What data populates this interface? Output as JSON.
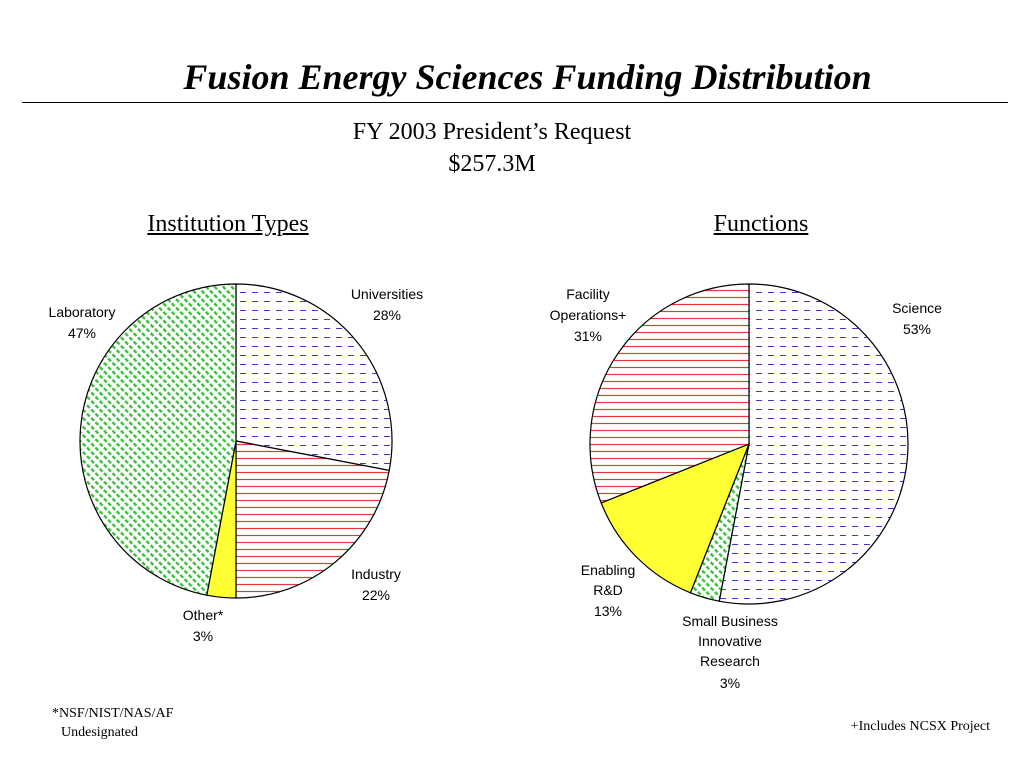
{
  "header": {
    "title": "Fusion Energy Sciences Funding Distribution",
    "subtitle_line1": "FY 2003 President’s Request",
    "subtitle_line2": "$257.3M"
  },
  "footnotes": {
    "left_line1": "*NSF/NIST/NAS/AF",
    "left_line2": "Undesignated",
    "right": "+Includes NCSX Project"
  },
  "colors": {
    "blue_dash": "#3a3ad0",
    "red_lines": "#e23a3a",
    "yellow_fill": "#ffff33",
    "green_hatch": "#3cbf3c"
  },
  "chart_data": [
    {
      "type": "pie",
      "title": "Institution Types",
      "slices": [
        {
          "label": "Universities",
          "percent_label": "28%",
          "value": 28,
          "pattern": "blue-dash"
        },
        {
          "label": "Industry",
          "percent_label": "22%",
          "value": 22,
          "pattern": "red-lines"
        },
        {
          "label": "Other*",
          "percent_label": "3%",
          "value": 3,
          "pattern": "yellow-solid"
        },
        {
          "label": "Laboratory",
          "percent_label": "47%",
          "value": 47,
          "pattern": "green-hatch"
        }
      ]
    },
    {
      "type": "pie",
      "title": "Functions",
      "slices": [
        {
          "label": "Science",
          "percent_label": "53%",
          "value": 53,
          "pattern": "blue-dash"
        },
        {
          "label": "Small Business Innovative Research",
          "percent_label": "3%",
          "value": 3,
          "pattern": "green-hatch"
        },
        {
          "label": "Enabling R&D",
          "percent_label": "13%",
          "value": 13,
          "pattern": "yellow-solid"
        },
        {
          "label": "Facility Operations+",
          "percent_label": "31%",
          "value": 31,
          "pattern": "red-lines"
        }
      ]
    }
  ]
}
